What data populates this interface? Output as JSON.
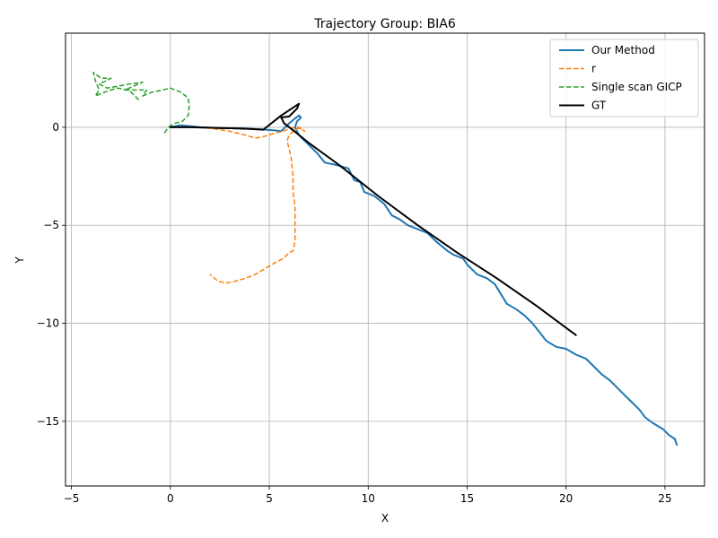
{
  "chart_data": {
    "type": "line",
    "title": "Trajectory Group: BIA6",
    "xlabel": "X",
    "ylabel": "Y",
    "xlim": [
      -5.3,
      27.0
    ],
    "ylim": [
      -18.3,
      4.8
    ],
    "xticks": [
      -5,
      0,
      5,
      10,
      15,
      20,
      25
    ],
    "yticks": [
      0,
      -5,
      -10,
      -15
    ],
    "grid": true,
    "legend_position": "top-right",
    "series": [
      {
        "name": "Our Method",
        "color": "#1f77b4",
        "style": "solid",
        "points": [
          [
            0,
            0
          ],
          [
            0.5,
            0.1
          ],
          [
            1.0,
            0.05
          ],
          [
            1.5,
            0.0
          ],
          [
            2.5,
            -0.05
          ],
          [
            3.5,
            -0.05
          ],
          [
            4.5,
            -0.1
          ],
          [
            5.2,
            -0.15
          ],
          [
            5.6,
            -0.2
          ],
          [
            5.8,
            0.0
          ],
          [
            6.0,
            0.2
          ],
          [
            6.3,
            0.45
          ],
          [
            6.5,
            0.6
          ],
          [
            6.6,
            0.5
          ],
          [
            6.4,
            0.3
          ],
          [
            6.3,
            0.0
          ],
          [
            6.5,
            -0.4
          ],
          [
            6.9,
            -0.8
          ],
          [
            7.4,
            -1.3
          ],
          [
            7.8,
            -1.8
          ],
          [
            8.3,
            -1.9
          ],
          [
            9.0,
            -2.1
          ],
          [
            9.3,
            -2.7
          ],
          [
            9.6,
            -2.8
          ],
          [
            9.8,
            -3.3
          ],
          [
            10.3,
            -3.5
          ],
          [
            10.8,
            -3.9
          ],
          [
            11.2,
            -4.5
          ],
          [
            11.6,
            -4.7
          ],
          [
            12.0,
            -5.0
          ],
          [
            12.5,
            -5.2
          ],
          [
            13.0,
            -5.4
          ],
          [
            13.4,
            -5.8
          ],
          [
            14.0,
            -6.3
          ],
          [
            14.3,
            -6.5
          ],
          [
            14.8,
            -6.7
          ],
          [
            15.0,
            -7.0
          ],
          [
            15.5,
            -7.5
          ],
          [
            16.0,
            -7.7
          ],
          [
            16.4,
            -8.0
          ],
          [
            16.7,
            -8.5
          ],
          [
            17.0,
            -9.0
          ],
          [
            17.5,
            -9.3
          ],
          [
            17.9,
            -9.6
          ],
          [
            18.3,
            -10.0
          ],
          [
            18.7,
            -10.5
          ],
          [
            19.0,
            -10.9
          ],
          [
            19.5,
            -11.2
          ],
          [
            20.0,
            -11.3
          ],
          [
            20.5,
            -11.6
          ],
          [
            21.0,
            -11.8
          ],
          [
            21.4,
            -12.2
          ],
          [
            21.8,
            -12.6
          ],
          [
            22.2,
            -12.9
          ],
          [
            22.6,
            -13.3
          ],
          [
            22.9,
            -13.6
          ],
          [
            23.3,
            -14.0
          ],
          [
            23.7,
            -14.4
          ],
          [
            24.0,
            -14.8
          ],
          [
            24.4,
            -15.1
          ],
          [
            24.9,
            -15.4
          ],
          [
            25.2,
            -15.7
          ],
          [
            25.5,
            -15.9
          ],
          [
            25.6,
            -16.2
          ]
        ]
      },
      {
        "name": "r",
        "color": "#ff7f0e",
        "style": "dashed",
        "points": [
          [
            0,
            0
          ],
          [
            1.0,
            0.0
          ],
          [
            2.0,
            -0.05
          ],
          [
            3.0,
            -0.2
          ],
          [
            3.8,
            -0.4
          ],
          [
            4.3,
            -0.55
          ],
          [
            4.8,
            -0.45
          ],
          [
            5.3,
            -0.3
          ],
          [
            5.7,
            -0.2
          ],
          [
            6.1,
            -0.05
          ],
          [
            6.5,
            0.0
          ],
          [
            6.8,
            -0.2
          ],
          [
            6.5,
            -0.05
          ],
          [
            6.2,
            -0.2
          ],
          [
            6.0,
            -0.4
          ],
          [
            5.9,
            -0.7
          ],
          [
            6.1,
            -1.5
          ],
          [
            6.2,
            -2.5
          ],
          [
            6.2,
            -3.3
          ],
          [
            6.3,
            -4.0
          ],
          [
            6.3,
            -5.0
          ],
          [
            6.3,
            -5.8
          ],
          [
            6.2,
            -6.3
          ],
          [
            6.0,
            -6.4
          ],
          [
            5.7,
            -6.7
          ],
          [
            5.3,
            -6.9
          ],
          [
            4.8,
            -7.2
          ],
          [
            4.3,
            -7.5
          ],
          [
            3.8,
            -7.7
          ],
          [
            3.3,
            -7.85
          ],
          [
            2.8,
            -7.95
          ],
          [
            2.4,
            -7.85
          ],
          [
            2.0,
            -7.5
          ]
        ]
      },
      {
        "name": "Single scan GICP",
        "color": "#2ca02c",
        "style": "dashed",
        "points": [
          [
            -0.3,
            -0.3
          ],
          [
            -0.1,
            0.0
          ],
          [
            0.2,
            0.2
          ],
          [
            0.6,
            0.3
          ],
          [
            0.9,
            0.6
          ],
          [
            0.95,
            1.1
          ],
          [
            0.9,
            1.5
          ],
          [
            0.5,
            1.8
          ],
          [
            0.0,
            2.0
          ],
          [
            -0.4,
            1.9
          ],
          [
            -0.9,
            1.8
          ],
          [
            -1.4,
            1.6
          ],
          [
            -1.2,
            1.9
          ],
          [
            -1.7,
            1.9
          ],
          [
            -2.3,
            1.9
          ],
          [
            -1.4,
            2.3
          ],
          [
            -2.1,
            2.2
          ],
          [
            -2.6,
            2.1
          ],
          [
            -3.2,
            2.0
          ],
          [
            -3.6,
            2.2
          ],
          [
            -3.0,
            2.5
          ],
          [
            -3.5,
            2.5
          ],
          [
            -3.9,
            2.8
          ],
          [
            -3.8,
            2.4
          ],
          [
            -3.6,
            1.9
          ],
          [
            -3.8,
            1.6
          ],
          [
            -3.3,
            1.8
          ],
          [
            -2.7,
            2.0
          ],
          [
            -2.1,
            1.9
          ],
          [
            -1.6,
            1.4
          ]
        ]
      },
      {
        "name": "GT",
        "color": "#000000",
        "style": "solid",
        "points": [
          [
            0,
            0
          ],
          [
            1,
            0
          ],
          [
            2,
            -0.02
          ],
          [
            3,
            -0.05
          ],
          [
            4,
            -0.08
          ],
          [
            4.7,
            -0.12
          ],
          [
            5.6,
            0.6
          ],
          [
            6.5,
            1.2
          ],
          [
            6.4,
            0.95
          ],
          [
            6.0,
            0.55
          ],
          [
            5.6,
            0.5
          ],
          [
            5.75,
            0.2
          ],
          [
            6.2,
            -0.15
          ],
          [
            7.0,
            -0.8
          ],
          [
            8.5,
            -1.9
          ],
          [
            10.5,
            -3.5
          ],
          [
            12.5,
            -5.0
          ],
          [
            14.5,
            -6.4
          ],
          [
            16.5,
            -7.7
          ],
          [
            18.5,
            -9.1
          ],
          [
            20.5,
            -10.6
          ]
        ]
      }
    ]
  }
}
